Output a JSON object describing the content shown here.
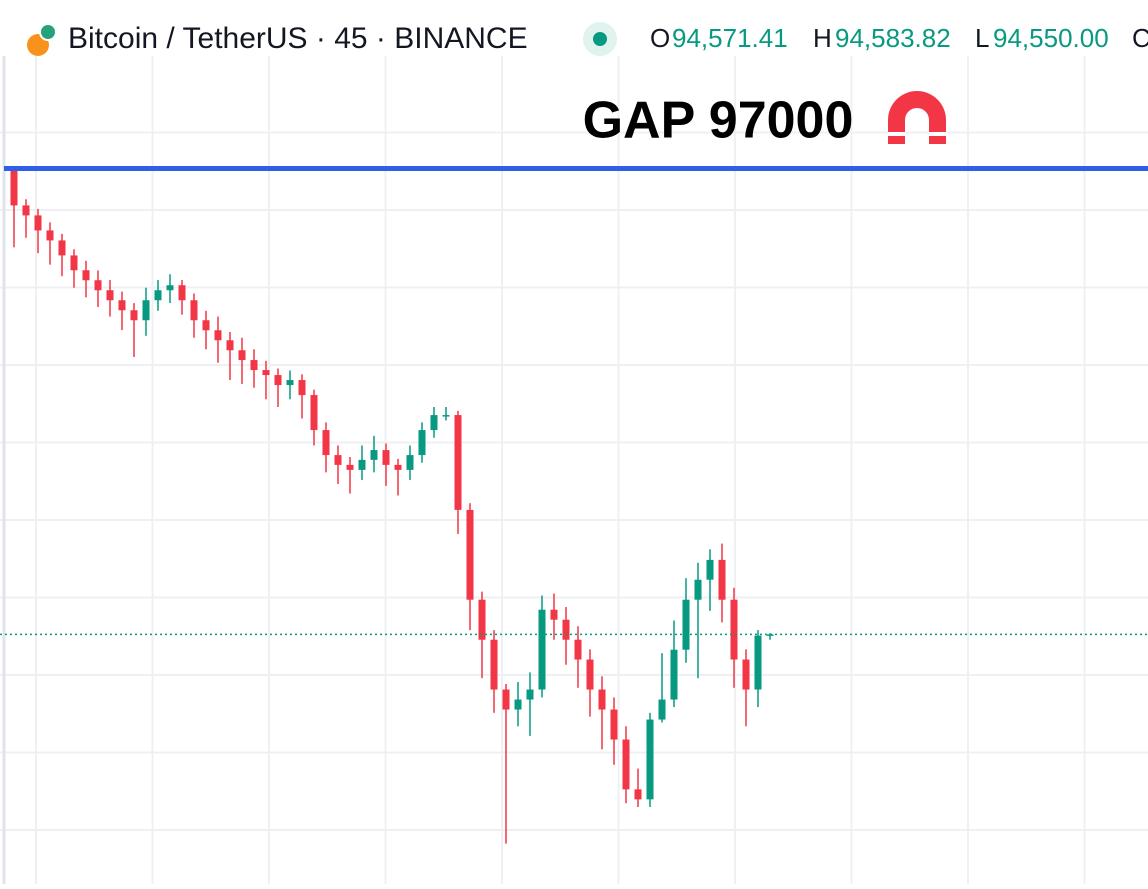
{
  "header": {
    "symbol": "Bitcoin / TetherUS · 45 · BINANCE",
    "o_label": "O",
    "o_value": "94,571.41",
    "h_label": "H",
    "h_value": "94,583.82",
    "l_label": "L",
    "l_value": "94,550.00",
    "c_label": "C"
  },
  "chart_data": {
    "type": "candlestick",
    "up_color": "#089981",
    "down_color": "#f23645",
    "grid": true,
    "ylim": [
      93280,
      97590
    ],
    "level": {
      "value": 97000,
      "label": "GAP 97000",
      "color": "#2f5ee8"
    },
    "last_price_color": "#089981",
    "open": [
      96990,
      96808,
      96756,
      96678,
      96626,
      96548,
      96471,
      96419,
      96367,
      96315,
      96263,
      96211,
      96315,
      96367,
      96393,
      96315,
      96211,
      96159,
      96107,
      96055,
      96004,
      95952,
      95926,
      95874,
      95900,
      95822,
      95640,
      95510,
      95459,
      95433,
      95485,
      95536,
      95459,
      95433,
      95510,
      95640,
      95718,
      95718,
      95225,
      94758,
      94550,
      94291,
      94187,
      94239,
      94291,
      94706,
      94654,
      94550,
      94447,
      94291,
      94187,
      94031,
      93772,
      93720,
      94135,
      94239,
      94498,
      94758,
      94862,
      94965,
      94758,
      94447,
      94291,
      94571.41
    ],
    "high": [
      97010,
      96840,
      96790,
      96720,
      96660,
      96580,
      96520,
      96470,
      96420,
      96360,
      96300,
      96380,
      96420,
      96450,
      96420,
      96350,
      96260,
      96230,
      96150,
      96120,
      96060,
      96000,
      95960,
      95950,
      95930,
      95850,
      95680,
      95560,
      95500,
      95560,
      95610,
      95570,
      95490,
      95560,
      95680,
      95760,
      95760,
      95740,
      95260,
      94800,
      94600,
      94320,
      94330,
      94380,
      94780,
      94790,
      94720,
      94620,
      94500,
      94360,
      94250,
      94100,
      93880,
      94170,
      94480,
      94650,
      94870,
      94950,
      95020,
      95050,
      94820,
      94500,
      94600,
      94583.82
    ],
    "low": [
      96590,
      96640,
      96560,
      96500,
      96440,
      96380,
      96330,
      96280,
      96230,
      96160,
      96020,
      96130,
      96260,
      96300,
      96240,
      96120,
      96060,
      95990,
      95900,
      95880,
      95860,
      95800,
      95760,
      95800,
      95700,
      95560,
      95420,
      95360,
      95310,
      95380,
      95420,
      95350,
      95300,
      95380,
      95470,
      95600,
      95690,
      95100,
      94600,
      94350,
      94170,
      93490,
      94100,
      94050,
      94250,
      94550,
      94420,
      94300,
      94150,
      93980,
      93900,
      93700,
      93680,
      93680,
      94120,
      94200,
      94430,
      94350,
      94700,
      94640,
      94300,
      94100,
      94200,
      94550
    ],
    "close": [
      96808,
      96756,
      96678,
      96626,
      96548,
      96471,
      96419,
      96367,
      96315,
      96263,
      96211,
      96315,
      96367,
      96393,
      96315,
      96211,
      96159,
      96107,
      96055,
      96004,
      95952,
      95926,
      95874,
      95900,
      95822,
      95640,
      95510,
      95459,
      95433,
      95485,
      95536,
      95459,
      95433,
      95510,
      95640,
      95718,
      95718,
      95225,
      94758,
      94550,
      94291,
      94187,
      94239,
      94291,
      94706,
      94654,
      94550,
      94447,
      94291,
      94187,
      94031,
      93772,
      93720,
      94135,
      94239,
      94498,
      94758,
      94862,
      94965,
      94758,
      94447,
      94291,
      94571.41,
      94578
    ]
  }
}
